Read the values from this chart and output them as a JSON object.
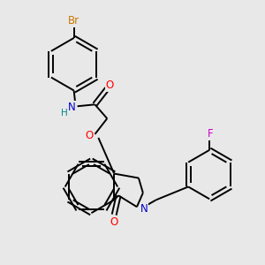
{
  "background_color": "#e8e8e8",
  "bond_color": "#000000",
  "atom_colors": {
    "Br": "#cc7700",
    "N": "#0000cc",
    "H": "#008888",
    "O": "#ff0000",
    "F": "#cc00cc"
  },
  "figsize": [
    3.0,
    3.0
  ],
  "dpi": 100,
  "lw": 1.4,
  "fontsize": 8.5
}
